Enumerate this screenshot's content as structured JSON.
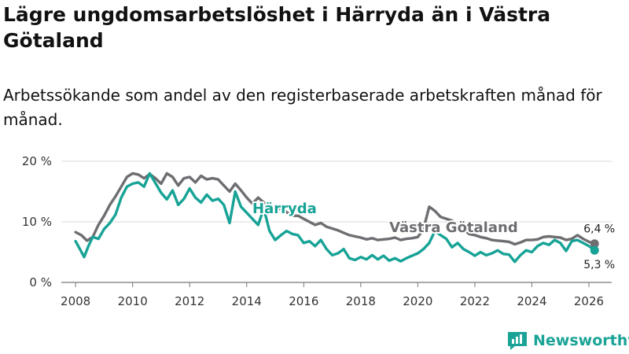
{
  "header": {
    "title": "Lägre ungdomsarbetslöshet i Härryda än i Västra Götaland",
    "subtitle": "Arbetssökande som andel av den registerbaserade arbetskraften månad för månad."
  },
  "brand": {
    "name": "Newsworthy",
    "icon": "newsworthy-logo-icon",
    "color": "#1aa396"
  },
  "chart_data": {
    "type": "line",
    "title": "Lägre ungdomsarbetslöshet i Härryda än i Västra Götaland",
    "subtitle": "Arbetssökande som andel av den registerbaserade arbetskraften månad för månad.",
    "xlabel": "",
    "ylabel": "",
    "xlim": [
      2007.5,
      2026.8
    ],
    "ylim": [
      0,
      20
    ],
    "x_ticks": [
      2008,
      2010,
      2012,
      2014,
      2016,
      2018,
      2020,
      2022,
      2024,
      2026
    ],
    "x_tick_labels": [
      "2008",
      "2010",
      "2012",
      "2014",
      "2016",
      "2018",
      "2020",
      "2022",
      "2024",
      "2026"
    ],
    "y_ticks": [
      0,
      10,
      20
    ],
    "y_tick_labels": [
      "0 %",
      "10 %",
      "20 %"
    ],
    "grid": true,
    "series": [
      {
        "name": "Västra Götaland",
        "color": "#6e6e72",
        "end_label": "6,4 %",
        "points": [
          [
            2008.0,
            8.3
          ],
          [
            2008.2,
            7.8
          ],
          [
            2008.4,
            6.9
          ],
          [
            2008.6,
            7.5
          ],
          [
            2008.8,
            9.5
          ],
          [
            2009.0,
            11.0
          ],
          [
            2009.2,
            12.8
          ],
          [
            2009.4,
            14.2
          ],
          [
            2009.6,
            15.8
          ],
          [
            2009.8,
            17.4
          ],
          [
            2010.0,
            18.0
          ],
          [
            2010.2,
            17.8
          ],
          [
            2010.4,
            17.2
          ],
          [
            2010.6,
            17.9
          ],
          [
            2010.8,
            17.2
          ],
          [
            2011.0,
            16.3
          ],
          [
            2011.2,
            18.0
          ],
          [
            2011.4,
            17.4
          ],
          [
            2011.6,
            16.0
          ],
          [
            2011.8,
            17.2
          ],
          [
            2012.0,
            17.4
          ],
          [
            2012.2,
            16.5
          ],
          [
            2012.4,
            17.6
          ],
          [
            2012.6,
            17.0
          ],
          [
            2012.8,
            17.2
          ],
          [
            2013.0,
            17.0
          ],
          [
            2013.2,
            16.0
          ],
          [
            2013.4,
            15.0
          ],
          [
            2013.6,
            16.3
          ],
          [
            2013.8,
            15.2
          ],
          [
            2014.0,
            14.0
          ],
          [
            2014.2,
            13.0
          ],
          [
            2014.4,
            14.0
          ],
          [
            2014.6,
            13.2
          ],
          [
            2014.8,
            12.5
          ],
          [
            2015.0,
            11.8
          ],
          [
            2015.2,
            12.3
          ],
          [
            2015.4,
            11.6
          ],
          [
            2015.6,
            11.0
          ],
          [
            2015.8,
            11.0
          ],
          [
            2016.0,
            10.5
          ],
          [
            2016.2,
            10.0
          ],
          [
            2016.4,
            9.5
          ],
          [
            2016.6,
            9.8
          ],
          [
            2016.8,
            9.2
          ],
          [
            2017.0,
            8.9
          ],
          [
            2017.2,
            8.6
          ],
          [
            2017.4,
            8.2
          ],
          [
            2017.6,
            7.8
          ],
          [
            2017.8,
            7.6
          ],
          [
            2018.0,
            7.4
          ],
          [
            2018.2,
            7.1
          ],
          [
            2018.4,
            7.3
          ],
          [
            2018.6,
            7.0
          ],
          [
            2018.8,
            7.1
          ],
          [
            2019.0,
            7.2
          ],
          [
            2019.2,
            7.4
          ],
          [
            2019.4,
            7.0
          ],
          [
            2019.6,
            7.2
          ],
          [
            2019.8,
            7.3
          ],
          [
            2020.0,
            7.5
          ],
          [
            2020.2,
            8.8
          ],
          [
            2020.4,
            12.5
          ],
          [
            2020.6,
            11.8
          ],
          [
            2020.8,
            10.8
          ],
          [
            2021.0,
            10.5
          ],
          [
            2021.2,
            10.2
          ],
          [
            2021.4,
            9.3
          ],
          [
            2021.6,
            8.8
          ],
          [
            2021.8,
            8.0
          ],
          [
            2022.0,
            7.8
          ],
          [
            2022.2,
            7.5
          ],
          [
            2022.4,
            7.3
          ],
          [
            2022.6,
            7.0
          ],
          [
            2022.8,
            6.9
          ],
          [
            2023.0,
            6.8
          ],
          [
            2023.2,
            6.7
          ],
          [
            2023.4,
            6.3
          ],
          [
            2023.6,
            6.6
          ],
          [
            2023.8,
            7.0
          ],
          [
            2024.0,
            7.0
          ],
          [
            2024.2,
            7.1
          ],
          [
            2024.4,
            7.5
          ],
          [
            2024.6,
            7.6
          ],
          [
            2024.8,
            7.5
          ],
          [
            2025.0,
            7.4
          ],
          [
            2025.2,
            7.0
          ],
          [
            2025.4,
            7.2
          ],
          [
            2025.6,
            7.8
          ],
          [
            2025.8,
            7.2
          ],
          [
            2026.0,
            6.7
          ],
          [
            2026.2,
            6.4
          ]
        ]
      },
      {
        "name": "Härryda",
        "color": "#17a396",
        "end_label": "5,3 %",
        "points": [
          [
            2008.0,
            6.8
          ],
          [
            2008.15,
            5.5
          ],
          [
            2008.3,
            4.2
          ],
          [
            2008.45,
            6.0
          ],
          [
            2008.6,
            7.5
          ],
          [
            2008.8,
            7.2
          ],
          [
            2009.0,
            8.8
          ],
          [
            2009.2,
            9.8
          ],
          [
            2009.4,
            11.2
          ],
          [
            2009.6,
            14.0
          ],
          [
            2009.8,
            15.8
          ],
          [
            2010.0,
            16.3
          ],
          [
            2010.2,
            16.5
          ],
          [
            2010.4,
            15.8
          ],
          [
            2010.6,
            18.0
          ],
          [
            2010.8,
            16.4
          ],
          [
            2011.0,
            14.8
          ],
          [
            2011.2,
            13.7
          ],
          [
            2011.4,
            15.2
          ],
          [
            2011.6,
            12.8
          ],
          [
            2011.8,
            13.8
          ],
          [
            2012.0,
            15.5
          ],
          [
            2012.2,
            14.0
          ],
          [
            2012.4,
            13.2
          ],
          [
            2012.6,
            14.5
          ],
          [
            2012.8,
            13.5
          ],
          [
            2013.0,
            13.8
          ],
          [
            2013.2,
            12.8
          ],
          [
            2013.4,
            9.8
          ],
          [
            2013.6,
            15.0
          ],
          [
            2013.8,
            12.5
          ],
          [
            2014.0,
            11.5
          ],
          [
            2014.2,
            10.5
          ],
          [
            2014.4,
            9.5
          ],
          [
            2014.6,
            12.2
          ],
          [
            2014.8,
            8.5
          ],
          [
            2015.0,
            7.0
          ],
          [
            2015.2,
            7.8
          ],
          [
            2015.4,
            8.5
          ],
          [
            2015.6,
            8.0
          ],
          [
            2015.8,
            7.8
          ],
          [
            2016.0,
            6.5
          ],
          [
            2016.2,
            6.8
          ],
          [
            2016.4,
            6.0
          ],
          [
            2016.6,
            7.0
          ],
          [
            2016.8,
            5.5
          ],
          [
            2017.0,
            4.5
          ],
          [
            2017.2,
            4.8
          ],
          [
            2017.4,
            5.5
          ],
          [
            2017.6,
            4.0
          ],
          [
            2017.8,
            3.7
          ],
          [
            2018.0,
            4.2
          ],
          [
            2018.2,
            3.8
          ],
          [
            2018.4,
            4.5
          ],
          [
            2018.6,
            3.8
          ],
          [
            2018.8,
            4.4
          ],
          [
            2019.0,
            3.6
          ],
          [
            2019.2,
            4.0
          ],
          [
            2019.4,
            3.5
          ],
          [
            2019.6,
            4.0
          ],
          [
            2019.8,
            4.4
          ],
          [
            2020.0,
            4.8
          ],
          [
            2020.2,
            5.5
          ],
          [
            2020.4,
            6.5
          ],
          [
            2020.6,
            8.5
          ],
          [
            2020.8,
            7.8
          ],
          [
            2021.0,
            7.2
          ],
          [
            2021.2,
            5.8
          ],
          [
            2021.4,
            6.5
          ],
          [
            2021.6,
            5.5
          ],
          [
            2021.8,
            5.0
          ],
          [
            2022.0,
            4.4
          ],
          [
            2022.2,
            5.0
          ],
          [
            2022.4,
            4.5
          ],
          [
            2022.6,
            4.8
          ],
          [
            2022.8,
            5.3
          ],
          [
            2023.0,
            4.7
          ],
          [
            2023.2,
            4.6
          ],
          [
            2023.4,
            3.4
          ],
          [
            2023.6,
            4.5
          ],
          [
            2023.8,
            5.3
          ],
          [
            2024.0,
            5.0
          ],
          [
            2024.2,
            6.0
          ],
          [
            2024.4,
            6.5
          ],
          [
            2024.6,
            6.2
          ],
          [
            2024.8,
            7.0
          ],
          [
            2025.0,
            6.5
          ],
          [
            2025.2,
            5.2
          ],
          [
            2025.4,
            6.8
          ],
          [
            2025.6,
            7.0
          ],
          [
            2025.8,
            6.5
          ],
          [
            2026.0,
            6.0
          ],
          [
            2026.2,
            5.3
          ]
        ]
      }
    ],
    "annotations": [
      {
        "text": "Härryda",
        "series": "Härryda",
        "x": 2014.2,
        "y": 11.4
      },
      {
        "text": "Västra Götaland",
        "series": "Västra Götaland",
        "x": 2019.0,
        "y": 8.3
      }
    ]
  }
}
